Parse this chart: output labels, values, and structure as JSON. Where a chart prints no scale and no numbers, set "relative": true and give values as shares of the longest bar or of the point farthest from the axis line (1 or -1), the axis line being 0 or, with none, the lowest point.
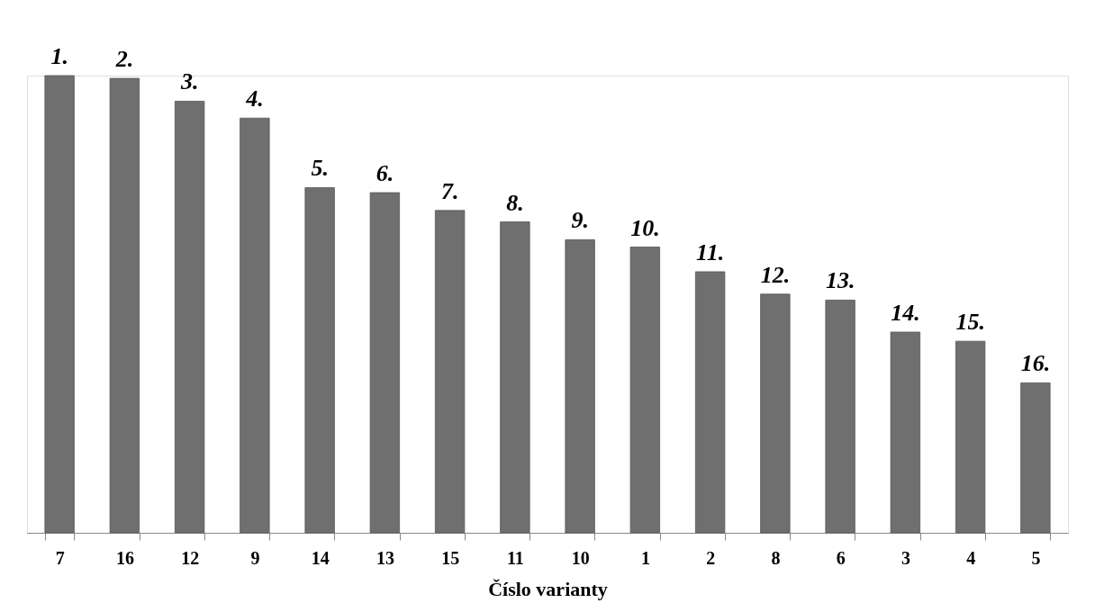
{
  "chart_data": {
    "type": "bar",
    "relative": true,
    "xlabel": "Číslo varianty",
    "categories": [
      "7",
      "16",
      "12",
      "9",
      "14",
      "13",
      "15",
      "11",
      "10",
      "1",
      "2",
      "8",
      "6",
      "3",
      "4",
      "5"
    ],
    "values": [
      1,
      0.994,
      0.944,
      0.907,
      0.755,
      0.744,
      0.705,
      0.68,
      0.641,
      0.625,
      0.571,
      0.522,
      0.509,
      0.439,
      0.419,
      0.328
    ],
    "annotations": [
      {
        "text": "1.",
        "x": "7",
        "y": 1
      },
      {
        "text": "2.",
        "x": "16",
        "y": 0.994
      },
      {
        "text": "3.",
        "x": "12",
        "y": 0.944
      },
      {
        "text": "4.",
        "x": "9",
        "y": 0.907
      },
      {
        "text": "5.",
        "x": "14",
        "y": 0.755
      },
      {
        "text": "6.",
        "x": "13",
        "y": 0.744
      },
      {
        "text": "7.",
        "x": "15",
        "y": 0.705
      },
      {
        "text": "8.",
        "x": "11",
        "y": 0.68
      },
      {
        "text": "9.",
        "x": "10",
        "y": 0.641
      },
      {
        "text": "10.",
        "x": "1",
        "y": 0.625
      },
      {
        "text": "11.",
        "x": "2",
        "y": 0.571
      },
      {
        "text": "12.",
        "x": "8",
        "y": 0.522
      },
      {
        "text": "13.",
        "x": "6",
        "y": 0.509
      },
      {
        "text": "14.",
        "x": "3",
        "y": 0.439
      },
      {
        "text": "15.",
        "x": "4",
        "y": 0.419
      },
      {
        "text": "16.",
        "x": "5",
        "y": 0.328
      }
    ],
    "color": "#6f6f6f"
  }
}
